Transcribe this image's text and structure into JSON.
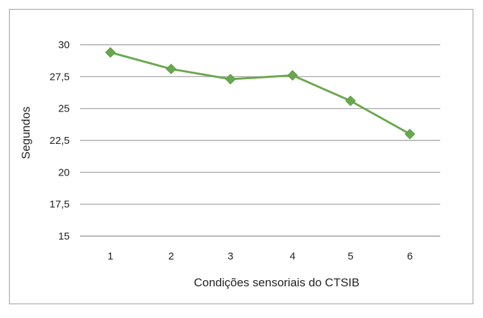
{
  "chart_data": {
    "type": "line",
    "xlabel": "Condições sensoriais do CTSIB",
    "ylabel": "Segundos",
    "categories": [
      "1",
      "2",
      "3",
      "4",
      "5",
      "6"
    ],
    "ylim": [
      15,
      30
    ],
    "yticks": [
      "15",
      "17,5",
      "20",
      "22,5",
      "25",
      "27,5",
      "30"
    ],
    "ytick_values": [
      15,
      17.5,
      20,
      22.5,
      25,
      27.5,
      30
    ],
    "series": [
      {
        "values": [
          29.4,
          28.1,
          27.3,
          27.6,
          25.6,
          23.0
        ],
        "color": "#6aa84f",
        "marker": "diamond"
      }
    ],
    "grid": true,
    "legend": "none"
  }
}
